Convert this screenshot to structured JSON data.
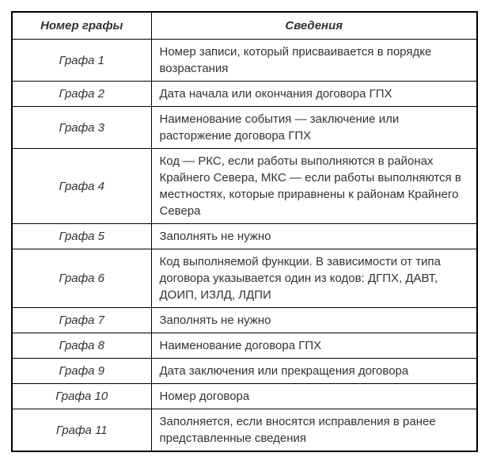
{
  "table": {
    "headers": [
      "Номер графы",
      "Сведения"
    ],
    "rows": [
      {
        "num": "Графа 1",
        "info": "Номер записи, который присваивается в порядке возрастания"
      },
      {
        "num": "Графа 2",
        "info": "Дата начала или окончания договора ГПХ"
      },
      {
        "num": "Графа 3",
        "info": "Наименование события — заключение или расторжение договора ГПХ"
      },
      {
        "num": "Графа 4",
        "info": "Код — РКС, если работы выполняются в районах Крайнего Севера, МКС — если работы выполняются в местностях, которые приравнены к районам Крайнего Севера"
      },
      {
        "num": "Графа 5",
        "info": "Заполнять не нужно"
      },
      {
        "num": "Графа 6",
        "info": "Код выполняемой функции. В зависимости от типа договора указывается один из кодов: ДГПХ, ДАВТ, ДОИП, ИЗЛД, ЛДПИ"
      },
      {
        "num": "Графа 7",
        "info": "Заполнять не нужно"
      },
      {
        "num": "Графа 8",
        "info": "Наименование договора ГПХ"
      },
      {
        "num": "Графа 9",
        "info": "Дата заключения или прекращения договора"
      },
      {
        "num": "Графа 10",
        "info": "Номер договора"
      },
      {
        "num": "Графа 11",
        "info": "Заполняется, если вносятся исправления в ранее представленные сведения"
      }
    ],
    "colors": {
      "border": "#000000",
      "text": "#333333",
      "background": "#ffffff"
    }
  }
}
